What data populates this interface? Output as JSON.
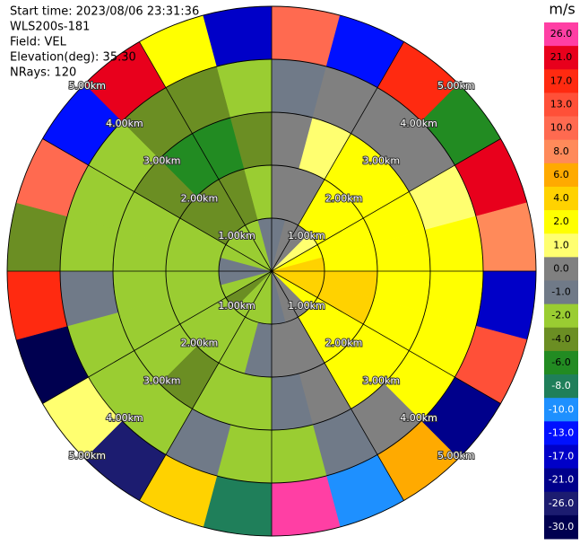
{
  "chart_data": {
    "type": "ppi",
    "header": [
      "Start time: 2023/08/06 23:31:36",
      "WLS200s-181",
      "Field: VEL",
      "Elevation(deg): 35.30",
      "NRays: 120"
    ],
    "unit": "m/s",
    "azimuths": [
      0,
      15,
      30,
      45,
      60,
      75,
      90,
      105,
      120,
      135,
      150,
      165,
      180,
      195,
      210,
      225,
      240,
      255,
      270,
      285,
      300,
      315,
      330,
      345,
      360
    ],
    "ranges": [
      0,
      1,
      2,
      3,
      4,
      5
    ],
    "values": [
      [
        -1,
        0,
        0,
        -1,
        10
      ],
      [
        0,
        0,
        1,
        0,
        -13
      ],
      [
        0,
        2,
        2,
        0,
        17
      ],
      [
        1,
        2,
        2,
        0,
        -6
      ],
      [
        2,
        2,
        2,
        1,
        21
      ],
      [
        4,
        2,
        2,
        2,
        8
      ],
      [
        4,
        4,
        2,
        2,
        -17
      ],
      [
        4,
        4,
        2,
        2,
        13
      ],
      [
        2,
        2,
        2,
        2,
        -21
      ],
      [
        0,
        2,
        2,
        0,
        6
      ],
      [
        0,
        0,
        0,
        -1,
        -10
      ],
      [
        -1,
        0,
        -1,
        -2,
        26
      ],
      [
        -2,
        -1,
        -2,
        -2,
        -8
      ],
      [
        -2,
        -2,
        -2,
        -1,
        4
      ],
      [
        -2,
        -2,
        -4,
        -2,
        -26
      ],
      [
        -4,
        -2,
        -2,
        -2,
        1
      ],
      [
        -2,
        -2,
        -2,
        -2,
        -30
      ],
      [
        -1,
        -2,
        -2,
        -1,
        17
      ],
      [
        -1,
        -2,
        -2,
        -2,
        -4
      ],
      [
        -2,
        -2,
        -2,
        -2,
        10
      ],
      [
        -2,
        -4,
        -4,
        -2,
        -13
      ],
      [
        -2,
        -4,
        -6,
        -4,
        21
      ],
      [
        -2,
        -4,
        -6,
        -4,
        2
      ],
      [
        -1,
        -2,
        -4,
        -2,
        -17
      ]
    ],
    "rings": [
      {
        "value": 1,
        "label": "1.00km"
      },
      {
        "value": 2,
        "label": "2.00km"
      },
      {
        "value": 3,
        "label": "3.00km"
      },
      {
        "value": 4,
        "label": "4.00km"
      },
      {
        "value": 5,
        "label": "5.00km"
      }
    ],
    "levels": [
      {
        "value": 26,
        "label": "26.0"
      },
      {
        "value": 21,
        "label": "21.0"
      },
      {
        "value": 17,
        "label": "17.0"
      },
      {
        "value": 13,
        "label": "13.0"
      },
      {
        "value": 10,
        "label": "10.0"
      },
      {
        "value": 8,
        "label": "8.0"
      },
      {
        "value": 6,
        "label": "6.0"
      },
      {
        "value": 4,
        "label": "4.0"
      },
      {
        "value": 2,
        "label": "2.0"
      },
      {
        "value": 1,
        "label": "1.0"
      },
      {
        "value": 0,
        "label": "0.0"
      },
      {
        "value": -1,
        "label": "-1.0"
      },
      {
        "value": -2,
        "label": "-2.0"
      },
      {
        "value": -4,
        "label": "-4.0"
      },
      {
        "value": -6,
        "label": "-6.0"
      },
      {
        "value": -8,
        "label": "-8.0"
      },
      {
        "value": -10,
        "label": "-10.0"
      },
      {
        "value": -13,
        "label": "-13.0"
      },
      {
        "value": -17,
        "label": "-17.0"
      },
      {
        "value": -21,
        "label": "-21.0"
      },
      {
        "value": -26,
        "label": "-26.0"
      },
      {
        "value": -30,
        "label": "-30.0"
      }
    ],
    "colors": [
      "#ff3fa4",
      "#e8001c",
      "#ff2a10",
      "#ff5038",
      "#ff6a50",
      "#ff8a5a",
      "#ffaa00",
      "#ffd200",
      "#ffff00",
      "#ffff70",
      "#808080",
      "#707a88",
      "#9acd32",
      "#6b8e23",
      "#228b22",
      "#1f7f5a",
      "#1e90ff",
      "#0010ff",
      "#0000c8",
      "#00008b",
      "#1c1c70",
      "#000050"
    ]
  }
}
